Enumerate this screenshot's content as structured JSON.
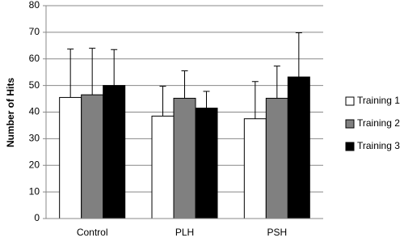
{
  "chart_data": {
    "type": "bar",
    "y_label": "Number of Hits",
    "categories": [
      "Control",
      "PLH",
      "PSH"
    ],
    "series": [
      {
        "name": "Training 1",
        "color": "#ffffff",
        "values": [
          45.5,
          38.5,
          37.5
        ],
        "errors": [
          18.2,
          11.2,
          14
        ]
      },
      {
        "name": "Training 2",
        "color": "#808080",
        "values": [
          46.5,
          45.2,
          45.2
        ],
        "errors": [
          17.5,
          10.3,
          12.1
        ]
      },
      {
        "name": "Training 3",
        "color": "#000000",
        "values": [
          50,
          41.5,
          53.2
        ],
        "errors": [
          13.5,
          6.3,
          16.6
        ]
      }
    ],
    "ylim": [
      0,
      80
    ],
    "yticks": [
      0,
      10,
      20,
      30,
      40,
      50,
      60,
      70,
      80
    ],
    "grid": true,
    "legend": "right"
  }
}
